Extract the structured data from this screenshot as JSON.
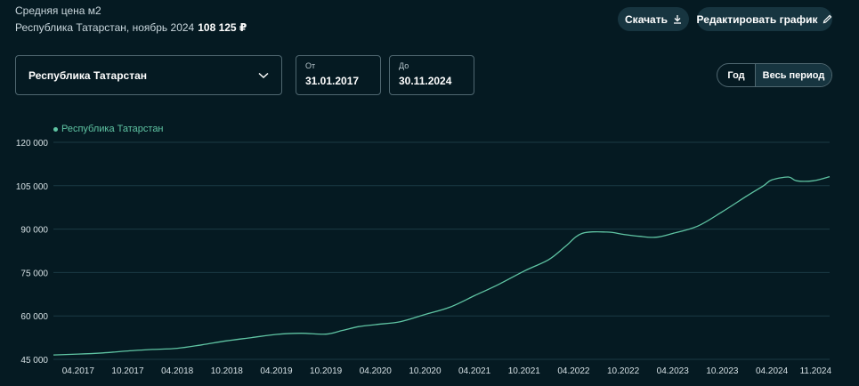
{
  "header": {
    "title": "Средняя цена м2",
    "subtitle": "Республика Татарстан, ноябрь 2024",
    "value": "108 125 ₽"
  },
  "toolbar": {
    "download_label": "Скачать",
    "edit_label": "Редактировать график"
  },
  "filters": {
    "region": "Республика Татарстан",
    "from_label": "От",
    "from_value": "31.01.2017",
    "to_label": "До",
    "to_value": "30.11.2024",
    "period_year": "Год",
    "period_all": "Весь период",
    "active_period": "Весь период"
  },
  "colors": {
    "line": "#5fc4a3",
    "grid": "#1b3a44"
  },
  "chart_data": {
    "type": "line",
    "legend": "Республика Татарстан",
    "legend_position": "top-left",
    "grid": true,
    "ylim": [
      45000,
      120000
    ],
    "yticks": [
      45000,
      60000,
      75000,
      90000,
      105000,
      120000
    ],
    "ytick_labels": [
      "45 000",
      "60 000",
      "75 000",
      "90 000",
      "105 000",
      "120 000"
    ],
    "xlim": [
      "2017-01",
      "2024-11"
    ],
    "xticks": [
      "2017-04",
      "2017-10",
      "2018-04",
      "2018-10",
      "2019-04",
      "2019-10",
      "2020-04",
      "2020-10",
      "2021-04",
      "2021-10",
      "2022-04",
      "2022-10",
      "2023-04",
      "2023-10",
      "2024-04",
      "2024-11"
    ],
    "xtick_labels": [
      "04.2017",
      "10.2017",
      "04.2018",
      "10.2018",
      "04.2019",
      "10.2019",
      "04.2020",
      "10.2020",
      "04.2021",
      "10.2021",
      "04.2022",
      "10.2022",
      "04.2023",
      "10.2023",
      "04.2024",
      "11.2024"
    ],
    "series": [
      {
        "name": "Республика Татарстан",
        "x": [
          "2017-01",
          "2017-04",
          "2017-07",
          "2017-10",
          "2018-01",
          "2018-04",
          "2018-07",
          "2018-10",
          "2019-01",
          "2019-04",
          "2019-07",
          "2019-10",
          "2019-12",
          "2020-02",
          "2020-04",
          "2020-07",
          "2020-10",
          "2021-01",
          "2021-04",
          "2021-07",
          "2021-10",
          "2022-01",
          "2022-03",
          "2022-05",
          "2022-08",
          "2022-10",
          "2022-12",
          "2023-02",
          "2023-04",
          "2023-07",
          "2023-10",
          "2024-01",
          "2024-03",
          "2024-04",
          "2024-06",
          "2024-07",
          "2024-09",
          "2024-11"
        ],
        "y": [
          46500,
          46800,
          47200,
          47900,
          48400,
          48800,
          50000,
          51400,
          52500,
          53600,
          54000,
          53700,
          55000,
          56300,
          57000,
          58000,
          60500,
          63000,
          67000,
          71000,
          75500,
          79500,
          84000,
          88500,
          89000,
          88200,
          87500,
          87200,
          88500,
          91000,
          96000,
          101500,
          105000,
          107000,
          108000,
          106700,
          106700,
          108125
        ]
      }
    ]
  }
}
